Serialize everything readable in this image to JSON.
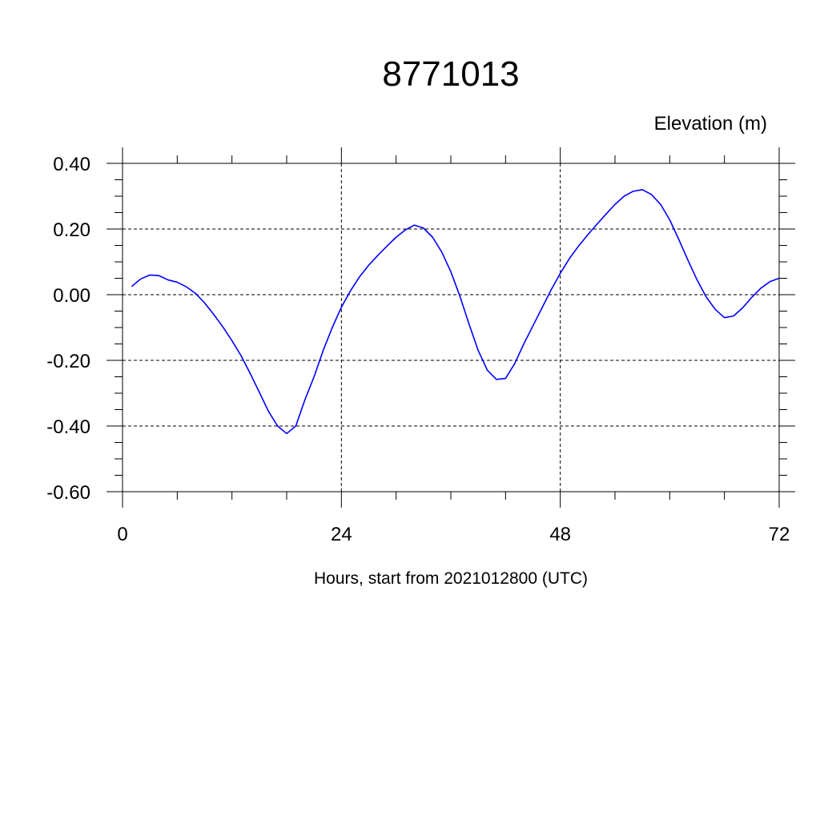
{
  "chart_data": {
    "type": "line",
    "title": "8771013",
    "ylabel": "Elevation (m)",
    "xlabel": "Hours, start from 2021012800 (UTC)",
    "xlim": [
      0,
      72
    ],
    "ylim": [
      -0.6,
      0.4
    ],
    "x_ticks": [
      0,
      24,
      48,
      72
    ],
    "x_tick_labels": [
      "0",
      "24",
      "48",
      "72"
    ],
    "y_ticks": [
      0.4,
      0.2,
      0.0,
      -0.2,
      -0.4,
      -0.6
    ],
    "y_tick_labels": [
      "0.40",
      "0.20",
      "0.00",
      "-0.20",
      "-0.40",
      "-0.60"
    ],
    "grid": true,
    "line_color": "#0000ff",
    "series": [
      {
        "x": [
          1,
          2,
          3,
          4,
          5,
          6,
          7,
          8,
          9,
          10,
          11,
          12,
          13,
          14,
          15,
          16,
          17,
          18,
          19,
          20,
          21,
          22,
          23,
          24,
          25,
          26,
          27,
          28,
          29,
          30,
          31,
          32,
          33,
          34,
          35,
          36,
          37,
          38,
          39,
          40,
          41,
          42,
          43,
          44,
          45,
          46,
          47,
          48,
          49,
          50,
          51,
          52,
          53,
          54,
          55,
          56,
          57,
          58,
          59,
          60,
          61,
          62,
          63,
          64,
          65,
          66,
          67,
          68,
          69,
          70,
          71,
          72
        ],
        "y": [
          0.025,
          0.048,
          0.06,
          0.058,
          0.045,
          0.038,
          0.024,
          0.004,
          -0.025,
          -0.06,
          -0.098,
          -0.14,
          -0.186,
          -0.24,
          -0.297,
          -0.355,
          -0.4,
          -0.423,
          -0.4,
          -0.32,
          -0.25,
          -0.17,
          -0.1,
          -0.038,
          0.012,
          0.055,
          0.09,
          0.12,
          0.148,
          0.175,
          0.197,
          0.212,
          0.203,
          0.175,
          0.13,
          0.07,
          -0.005,
          -0.09,
          -0.17,
          -0.23,
          -0.258,
          -0.255,
          -0.21,
          -0.15,
          -0.095,
          -0.04,
          0.015,
          0.065,
          0.11,
          0.148,
          0.182,
          0.214,
          0.245,
          0.275,
          0.3,
          0.315,
          0.32,
          0.305,
          0.275,
          0.228,
          0.168,
          0.105,
          0.045,
          -0.007,
          -0.045,
          -0.07,
          -0.065,
          -0.04,
          -0.008,
          0.02,
          0.04,
          0.05
        ]
      }
    ]
  }
}
